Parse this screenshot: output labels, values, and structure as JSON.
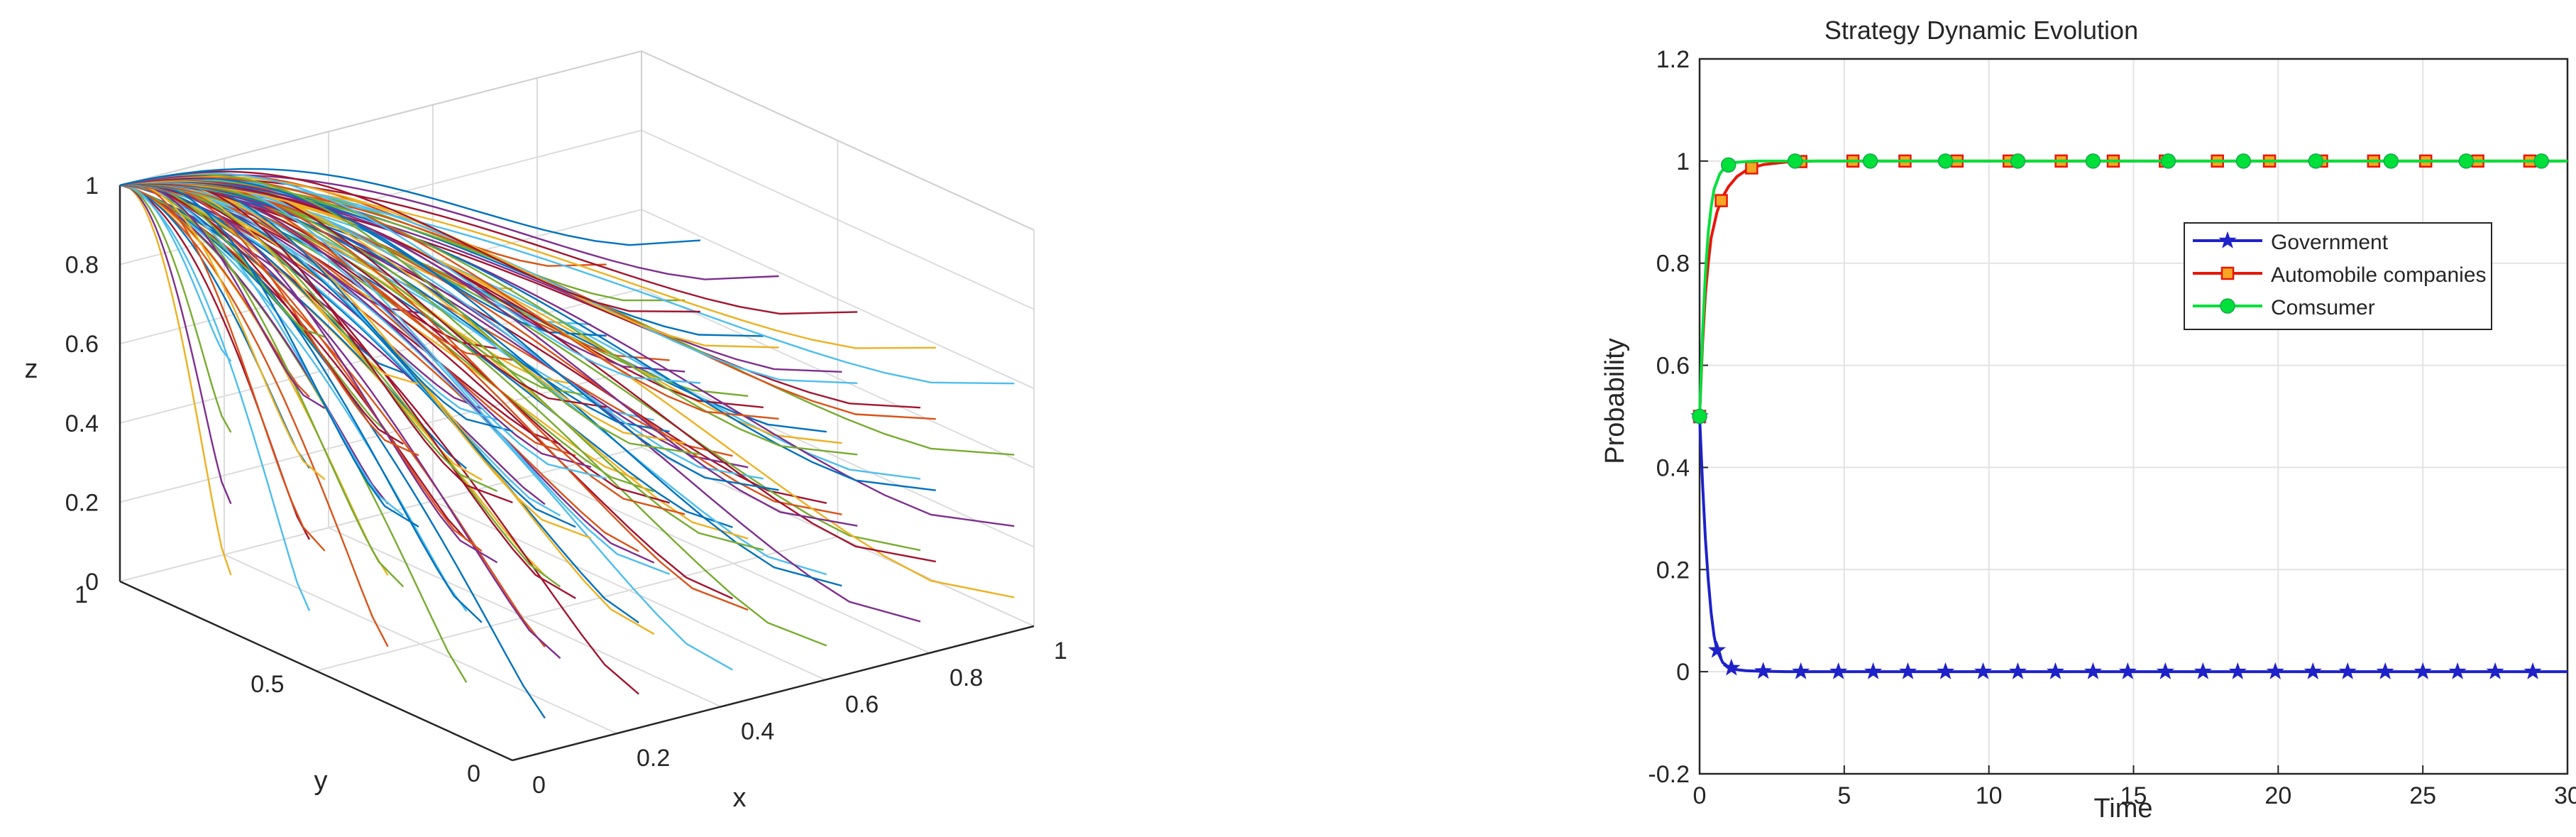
{
  "chart_data": [
    {
      "type": "line3d",
      "title": "",
      "xlabel": "x",
      "ylabel": "y",
      "zlabel": "z",
      "xlim": [
        0,
        1
      ],
      "ylim": [
        0,
        1
      ],
      "zlim": [
        0,
        1
      ],
      "xticks": [
        "0",
        "0.2",
        "0.4",
        "0.6",
        "0.8",
        "1"
      ],
      "yticks": [
        "0",
        "0.5",
        "1"
      ],
      "zticks": [
        "0",
        "0.2",
        "0.4",
        "0.6",
        "0.8",
        "1"
      ],
      "grid": true,
      "description": "trajectories from a grid of initial points (x0, y0, z0) all converging to (x, y, z) = (0, 1, 1)",
      "convergence_point": [
        0,
        1,
        1
      ],
      "trajectory_colors": [
        "#0072bd",
        "#d95319",
        "#edb120",
        "#7e2f8e",
        "#77ac30",
        "#4dbeee",
        "#a2142f"
      ]
    },
    {
      "type": "line",
      "title": "Strategy Dynamic Evolution",
      "xlabel": "Time",
      "ylabel": "Probability",
      "xlim": [
        0,
        30
      ],
      "ylim": [
        -0.2,
        1.2
      ],
      "xticks": [
        "0",
        "5",
        "10",
        "15",
        "20",
        "25",
        "30"
      ],
      "yticks": [
        "-0.2",
        "0",
        "0.2",
        "0.4",
        "0.6",
        "0.8",
        "1",
        "1.2"
      ],
      "grid": true,
      "legend_position": "top-right",
      "series": [
        {
          "name": "Government",
          "color": "#1e22c8",
          "marker": "star",
          "x": [
            0,
            0.1,
            0.2,
            0.3,
            0.4,
            0.5,
            0.6,
            0.8,
            1.0,
            1.3,
            1.6,
            2.0,
            3.0,
            5.0,
            10.0,
            30.0
          ],
          "values": [
            0.5,
            0.37,
            0.26,
            0.18,
            0.115,
            0.07,
            0.042,
            0.018,
            0.009,
            0.004,
            0.002,
            0.001,
            0,
            0,
            0,
            0
          ],
          "marker_x": [
            0.6,
            1.1,
            2.2,
            3.5,
            4.8,
            6.0,
            7.2,
            8.5,
            9.8,
            11.0,
            12.3,
            13.6,
            14.8,
            16.1,
            17.4,
            18.6,
            19.9,
            21.2,
            22.4,
            23.7,
            25.0,
            26.2,
            27.5,
            28.8
          ]
        },
        {
          "name": "Automobile companies",
          "color": "#e8160a",
          "marker": "square",
          "x": [
            0,
            0.1,
            0.2,
            0.3,
            0.4,
            0.6,
            0.8,
            1.0,
            1.3,
            1.7,
            2.2,
            3.0,
            4.0,
            6.0,
            10.0,
            30.0
          ],
          "values": [
            0.5,
            0.64,
            0.74,
            0.8,
            0.85,
            0.9,
            0.93,
            0.95,
            0.97,
            0.985,
            0.993,
            0.998,
            1.0,
            1.0,
            1.0,
            1.0
          ],
          "marker_x": [
            0.75,
            1.8,
            3.5,
            5.3,
            7.1,
            8.9,
            10.7,
            12.5,
            14.3,
            16.1,
            17.9,
            19.7,
            21.5,
            23.3,
            25.1,
            26.9,
            28.7
          ]
        },
        {
          "name": "Comsumer",
          "color": "#00e03a",
          "marker": "circle",
          "x": [
            0,
            0.1,
            0.2,
            0.3,
            0.4,
            0.5,
            0.7,
            0.9,
            1.2,
            1.6,
            2.0,
            3.0,
            10.0,
            30.0
          ],
          "values": [
            0.5,
            0.66,
            0.78,
            0.86,
            0.91,
            0.945,
            0.975,
            0.99,
            0.997,
            0.999,
            1.0,
            1.0,
            1.0,
            1.0
          ],
          "marker_x": [
            1.0,
            3.3,
            5.9,
            8.5,
            11.0,
            13.6,
            16.2,
            18.8,
            21.3,
            23.9,
            26.5,
            29.1
          ]
        }
      ]
    }
  ]
}
